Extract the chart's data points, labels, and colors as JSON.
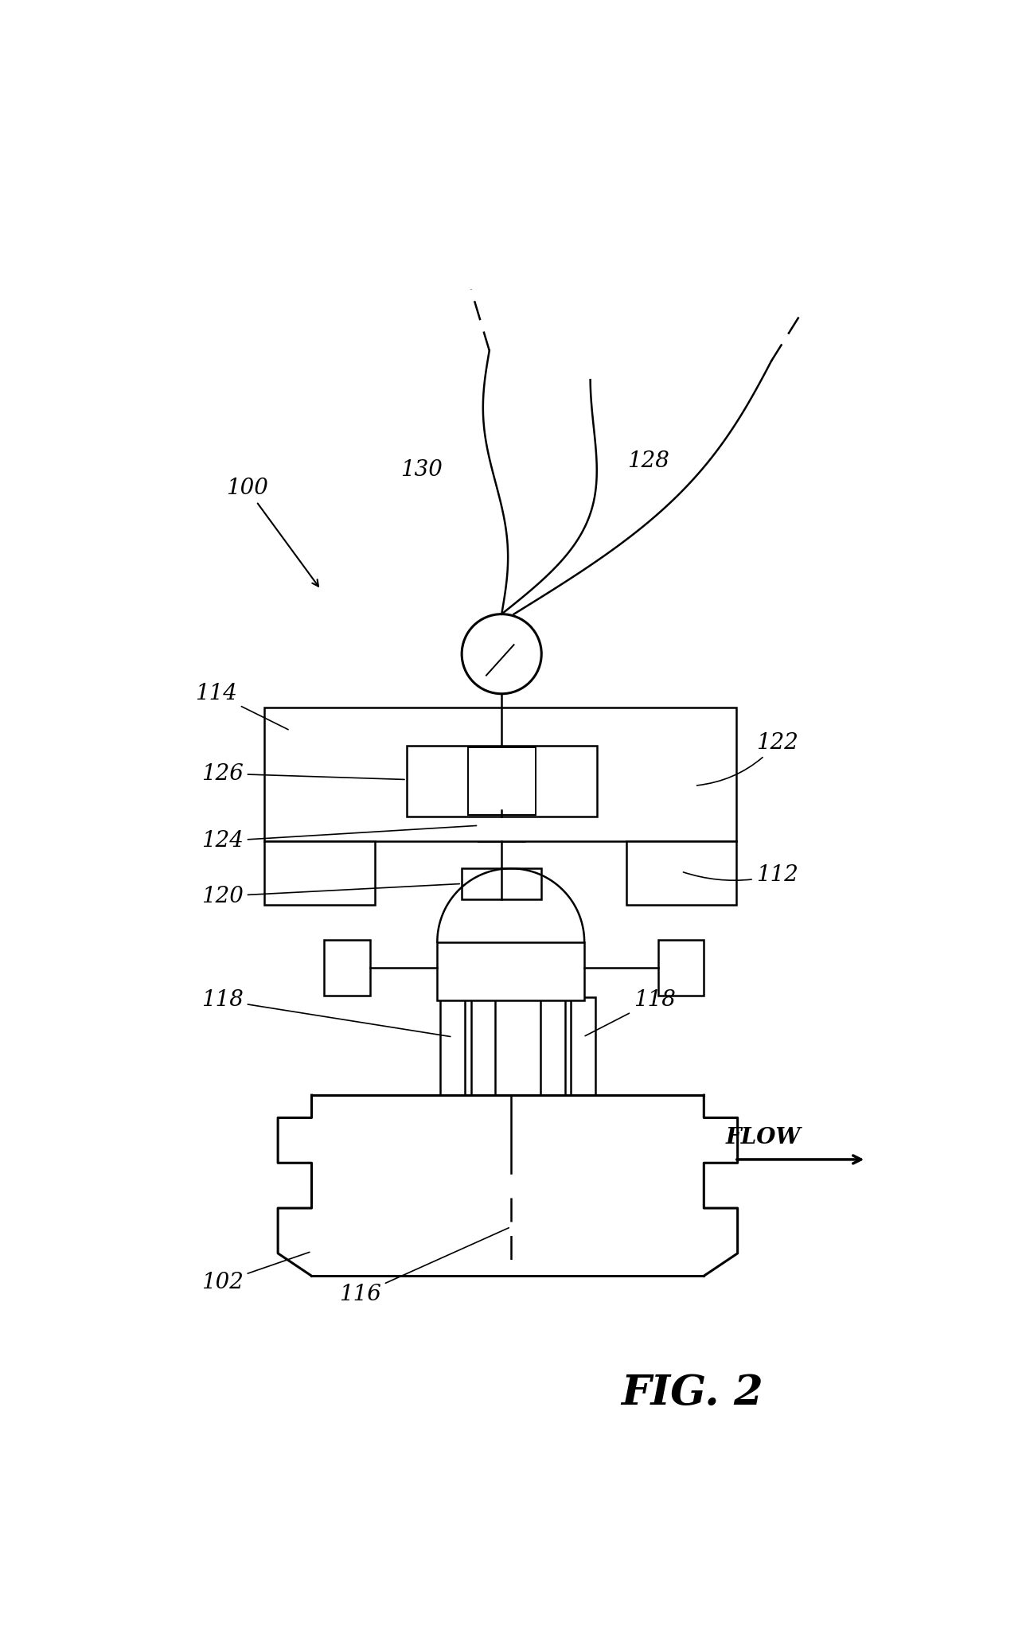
{
  "bg_color": "#ffffff",
  "line_color": "#000000",
  "fig_width": 12.89,
  "fig_height": 20.67,
  "dpi": 100
}
